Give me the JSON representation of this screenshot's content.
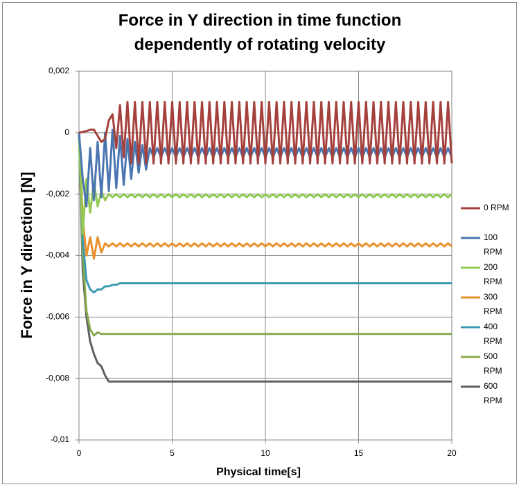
{
  "chart_data": {
    "type": "line",
    "title": "Force in Y direction in time function dependently of rotating velocity",
    "x_label": "Physical time[s]",
    "y_label": "Force in Y direction [N]",
    "xlim": [
      0,
      20
    ],
    "xticks": [
      0,
      5,
      10,
      15,
      20
    ],
    "ylim": [
      -0.01,
      0.002
    ],
    "yticks": [
      {
        "value": 0.002,
        "label": "0,002"
      },
      0,
      {
        "value": -0.002,
        "label": "-0,002"
      },
      {
        "value": -0.004,
        "label": "-0,004"
      },
      {
        "value": -0.006,
        "label": "-0,006"
      },
      {
        "value": -0.008,
        "label": "-0,008"
      },
      {
        "value": -0.01,
        "label": "-0,01"
      }
    ],
    "grid": true,
    "legend": "right",
    "x": [
      0,
      0.2,
      0.4,
      0.6,
      0.8,
      1,
      1.2,
      1.4,
      1.6,
      1.8,
      2,
      2.2,
      2.4,
      2.6,
      2.8,
      3,
      3.2,
      3.4,
      3.6,
      3.8,
      4,
      4.2,
      4.4,
      4.6,
      4.8,
      5,
      5.2,
      5.4,
      5.6,
      5.8,
      6,
      6.2,
      6.4,
      6.6,
      6.8,
      7,
      7.2,
      7.4,
      7.6,
      7.8,
      8,
      8.2,
      8.4,
      8.6,
      8.8,
      9,
      9.2,
      9.4,
      9.6,
      9.8,
      10,
      10.2,
      10.4,
      10.6,
      10.8,
      11,
      11.2,
      11.4,
      11.6,
      11.8,
      12,
      12.2,
      12.4,
      12.6,
      12.8,
      13,
      13.2,
      13.4,
      13.6,
      13.8,
      14,
      14.2,
      14.4,
      14.6,
      14.8,
      15,
      15.2,
      15.4,
      15.6,
      15.8,
      16,
      16.2,
      16.4,
      16.6,
      16.8,
      17,
      17.2,
      17.4,
      17.6,
      17.8,
      18,
      18.2,
      18.4,
      18.6,
      18.8,
      19,
      19.2,
      19.4,
      19.6,
      19.8,
      20
    ],
    "series": [
      {
        "name": "0 RPM",
        "color": "#a5413d",
        "values": [
          0,
          3e-05,
          5e-05,
          0.0001,
          0.0001,
          -0.0001,
          -0.0003,
          -0.0002,
          0.0004,
          0.0006,
          -0.0005,
          0.0009,
          -0.0008,
          0.001,
          -0.001,
          0.001,
          -0.001,
          0.001,
          -0.001,
          0.001,
          -0.001,
          0.001,
          -0.001,
          0.001,
          -0.001,
          0.001,
          -0.001,
          0.001,
          -0.001,
          0.001,
          -0.001,
          0.001,
          -0.001,
          0.001,
          -0.001,
          0.001,
          -0.001,
          0.001,
          -0.001,
          0.001,
          -0.001,
          0.001,
          -0.001,
          0.001,
          -0.001,
          0.001,
          -0.001,
          0.001,
          -0.001,
          0.001,
          -0.001,
          0.001,
          -0.001,
          0.001,
          -0.001,
          0.001,
          -0.001,
          0.001,
          -0.001,
          0.001,
          -0.001,
          0.001,
          -0.001,
          0.001,
          -0.001,
          0.001,
          -0.001,
          0.001,
          -0.001,
          0.001,
          -0.001,
          0.001,
          -0.001,
          0.001,
          -0.001,
          0.001,
          -0.001,
          0.001,
          -0.001,
          0.001,
          -0.001,
          0.001,
          -0.001,
          0.001,
          -0.001,
          0.001,
          -0.001,
          0.001,
          -0.001,
          0.001,
          -0.001,
          0.001,
          -0.001,
          0.001,
          -0.001,
          0.001,
          -0.001,
          0.001,
          -0.001,
          0.001,
          -0.001
        ]
      },
      {
        "name": "100 RPM",
        "color": "#4a75b0",
        "values": [
          0,
          -0.0015,
          -0.0024,
          -0.0005,
          -0.0022,
          -0.0003,
          -0.0021,
          0,
          -0.0019,
          0.0001,
          -0.0018,
          -0.0001,
          -0.0017,
          -0.0002,
          -0.0015,
          -0.0003,
          -0.0013,
          -0.0004,
          -0.0012,
          -0.0005,
          -0.0008,
          -0.0005,
          -0.0008,
          -0.0005,
          -0.0008,
          -0.0005,
          -0.0008,
          -0.0005,
          -0.0008,
          -0.0005,
          -0.0008,
          -0.0005,
          -0.0008,
          -0.0005,
          -0.0008,
          -0.0005,
          -0.0008,
          -0.0005,
          -0.0008,
          -0.0005,
          -0.0008,
          -0.0005,
          -0.0008,
          -0.0005,
          -0.0008,
          -0.0005,
          -0.0008,
          -0.0005,
          -0.0008,
          -0.0005,
          -0.0008,
          -0.0005,
          -0.0008,
          -0.0005,
          -0.0008,
          -0.0005,
          -0.0008,
          -0.0005,
          -0.0008,
          -0.0005,
          -0.0008,
          -0.0005,
          -0.0008,
          -0.0005,
          -0.0008,
          -0.0005,
          -0.0008,
          -0.0005,
          -0.0008,
          -0.0005,
          -0.0008,
          -0.0005,
          -0.0008,
          -0.0005,
          -0.0008,
          -0.0005,
          -0.0008,
          -0.0005,
          -0.0008,
          -0.0005,
          -0.0008,
          -0.0005,
          -0.0008,
          -0.0005,
          -0.0008,
          -0.0005,
          -0.0008,
          -0.0005,
          -0.0008,
          -0.0005,
          -0.0008,
          -0.0005,
          -0.0008,
          -0.0005,
          -0.0008,
          -0.0005,
          -0.0008,
          -0.0005,
          -0.0008,
          -0.0005,
          -0.0008
        ]
      },
      {
        "name": "200 RPM",
        "color": "#93c953",
        "values": [
          0,
          -0.0033,
          -0.0015,
          -0.0026,
          -0.0016,
          -0.0024,
          -0.0019,
          -0.0022,
          -0.002,
          -0.0021,
          -0.002,
          -0.0021,
          -0.002,
          -0.0021,
          -0.002,
          -0.0021,
          -0.002,
          -0.0021,
          -0.002,
          -0.0021,
          -0.002,
          -0.0021,
          -0.002,
          -0.0021,
          -0.002,
          -0.0021,
          -0.002,
          -0.0021,
          -0.002,
          -0.0021,
          -0.002,
          -0.0021,
          -0.002,
          -0.0021,
          -0.002,
          -0.0021,
          -0.002,
          -0.0021,
          -0.002,
          -0.0021,
          -0.002,
          -0.0021,
          -0.002,
          -0.0021,
          -0.002,
          -0.0021,
          -0.002,
          -0.0021,
          -0.002,
          -0.0021,
          -0.002,
          -0.0021,
          -0.002,
          -0.0021,
          -0.002,
          -0.0021,
          -0.002,
          -0.0021,
          -0.002,
          -0.0021,
          -0.002,
          -0.0021,
          -0.002,
          -0.0021,
          -0.002,
          -0.0021,
          -0.002,
          -0.0021,
          -0.002,
          -0.0021,
          -0.002,
          -0.0021,
          -0.002,
          -0.0021,
          -0.002,
          -0.0021,
          -0.002,
          -0.0021,
          -0.002,
          -0.0021,
          -0.002,
          -0.0021,
          -0.002,
          -0.0021,
          -0.002,
          -0.0021,
          -0.002,
          -0.0021,
          -0.002,
          -0.0021,
          -0.002,
          -0.0021,
          -0.002,
          -0.0021,
          -0.002,
          -0.0021,
          -0.002,
          -0.0021,
          -0.002,
          -0.0021,
          -0.002
        ]
      },
      {
        "name": "300 RPM",
        "color": "#e8912f",
        "values": [
          0,
          -0.0028,
          -0.004,
          -0.0034,
          -0.0041,
          -0.0034,
          -0.0039,
          -0.0036,
          -0.0037,
          -0.0036,
          -0.0037,
          -0.0036,
          -0.0037,
          -0.0036,
          -0.0037,
          -0.0036,
          -0.0037,
          -0.0036,
          -0.0037,
          -0.0036,
          -0.0037,
          -0.0036,
          -0.0037,
          -0.0036,
          -0.0037,
          -0.0036,
          -0.0037,
          -0.0036,
          -0.0037,
          -0.0036,
          -0.0037,
          -0.0036,
          -0.0037,
          -0.0036,
          -0.0037,
          -0.0036,
          -0.0037,
          -0.0036,
          -0.0037,
          -0.0036,
          -0.0037,
          -0.0036,
          -0.0037,
          -0.0036,
          -0.0037,
          -0.0036,
          -0.0037,
          -0.0036,
          -0.0037,
          -0.0036,
          -0.0037,
          -0.0036,
          -0.0037,
          -0.0036,
          -0.0037,
          -0.0036,
          -0.0037,
          -0.0036,
          -0.0037,
          -0.0036,
          -0.0037,
          -0.0036,
          -0.0037,
          -0.0036,
          -0.0037,
          -0.0036,
          -0.0037,
          -0.0036,
          -0.0037,
          -0.0036,
          -0.0037,
          -0.0036,
          -0.0037,
          -0.0036,
          -0.0037,
          -0.0036,
          -0.0037,
          -0.0036,
          -0.0037,
          -0.0036,
          -0.0037,
          -0.0036,
          -0.0037,
          -0.0036,
          -0.0037,
          -0.0036,
          -0.0037,
          -0.0036,
          -0.0037,
          -0.0036,
          -0.0037,
          -0.0036,
          -0.0037,
          -0.0036,
          -0.0037,
          -0.0036,
          -0.0037,
          -0.0036,
          -0.0037,
          -0.0036,
          -0.0037
        ]
      },
      {
        "name": "400 RPM",
        "color": "#3b9ab1",
        "values": [
          0,
          -0.0035,
          -0.0048,
          -0.0051,
          -0.0052,
          -0.0051,
          -0.0051,
          -0.005,
          -0.005,
          -0.00495,
          -0.00495,
          -0.0049,
          -0.0049,
          -0.0049,
          -0.0049,
          -0.0049,
          -0.0049,
          -0.0049,
          -0.0049,
          -0.0049,
          -0.0049,
          -0.0049,
          -0.0049,
          -0.0049,
          -0.0049,
          -0.0049,
          -0.0049,
          -0.0049,
          -0.0049,
          -0.0049,
          -0.0049,
          -0.0049,
          -0.0049,
          -0.0049,
          -0.0049,
          -0.0049,
          -0.0049,
          -0.0049,
          -0.0049,
          -0.0049,
          -0.0049,
          -0.0049,
          -0.0049,
          -0.0049,
          -0.0049,
          -0.0049,
          -0.0049,
          -0.0049,
          -0.0049,
          -0.0049,
          -0.0049,
          -0.0049,
          -0.0049,
          -0.0049,
          -0.0049,
          -0.0049,
          -0.0049,
          -0.0049,
          -0.0049,
          -0.0049,
          -0.0049,
          -0.0049,
          -0.0049,
          -0.0049,
          -0.0049,
          -0.0049,
          -0.0049,
          -0.0049,
          -0.0049,
          -0.0049,
          -0.0049,
          -0.0049,
          -0.0049,
          -0.0049,
          -0.0049,
          -0.0049,
          -0.0049,
          -0.0049,
          -0.0049,
          -0.0049,
          -0.0049,
          -0.0049,
          -0.0049,
          -0.0049,
          -0.0049,
          -0.0049,
          -0.0049,
          -0.0049,
          -0.0049,
          -0.0049,
          -0.0049,
          -0.0049,
          -0.0049,
          -0.0049,
          -0.0049,
          -0.0049,
          -0.0049,
          -0.0049,
          -0.0049,
          -0.0049,
          -0.0049
        ]
      },
      {
        "name": "500 RPM",
        "color": "#87aa4c",
        "values": [
          0,
          -0.004,
          -0.0058,
          -0.0064,
          -0.0066,
          -0.0065,
          -0.00655,
          -0.00655,
          -0.00655,
          -0.00655,
          -0.00655,
          -0.00655,
          -0.00655,
          -0.00655,
          -0.00655,
          -0.00655,
          -0.00655,
          -0.00655,
          -0.00655,
          -0.00655,
          -0.00655,
          -0.00655,
          -0.00655,
          -0.00655,
          -0.00655,
          -0.00655,
          -0.00655,
          -0.00655,
          -0.00655,
          -0.00655,
          -0.00655,
          -0.00655,
          -0.00655,
          -0.00655,
          -0.00655,
          -0.00655,
          -0.00655,
          -0.00655,
          -0.00655,
          -0.00655,
          -0.00655,
          -0.00655,
          -0.00655,
          -0.00655,
          -0.00655,
          -0.00655,
          -0.00655,
          -0.00655,
          -0.00655,
          -0.00655,
          -0.00655,
          -0.00655,
          -0.00655,
          -0.00655,
          -0.00655,
          -0.00655,
          -0.00655,
          -0.00655,
          -0.00655,
          -0.00655,
          -0.00655,
          -0.00655,
          -0.00655,
          -0.00655,
          -0.00655,
          -0.00655,
          -0.00655,
          -0.00655,
          -0.00655,
          -0.00655,
          -0.00655,
          -0.00655,
          -0.00655,
          -0.00655,
          -0.00655,
          -0.00655,
          -0.00655,
          -0.00655,
          -0.00655,
          -0.00655,
          -0.00655,
          -0.00655,
          -0.00655,
          -0.00655,
          -0.00655,
          -0.00655,
          -0.00655,
          -0.00655,
          -0.00655,
          -0.00655,
          -0.00655,
          -0.00655,
          -0.00655,
          -0.00655,
          -0.00655,
          -0.00655,
          -0.00655,
          -0.00655,
          -0.00655,
          -0.00655,
          -0.00655
        ]
      },
      {
        "name": "600 RPM",
        "color": "#5f5f5f",
        "values": [
          0,
          -0.0045,
          -0.006,
          -0.0068,
          -0.0072,
          -0.0075,
          -0.0076,
          -0.0079,
          -0.0081,
          -0.0081,
          -0.0081,
          -0.0081,
          -0.0081,
          -0.0081,
          -0.0081,
          -0.0081,
          -0.0081,
          -0.0081,
          -0.0081,
          -0.0081,
          -0.0081,
          -0.0081,
          -0.0081,
          -0.0081,
          -0.0081,
          -0.0081,
          -0.0081,
          -0.0081,
          -0.0081,
          -0.0081,
          -0.0081,
          -0.0081,
          -0.0081,
          -0.0081,
          -0.0081,
          -0.0081,
          -0.0081,
          -0.0081,
          -0.0081,
          -0.0081,
          -0.0081,
          -0.0081,
          -0.0081,
          -0.0081,
          -0.0081,
          -0.0081,
          -0.0081,
          -0.0081,
          -0.0081,
          -0.0081,
          -0.0081,
          -0.0081,
          -0.0081,
          -0.0081,
          -0.0081,
          -0.0081,
          -0.0081,
          -0.0081,
          -0.0081,
          -0.0081,
          -0.0081,
          -0.0081,
          -0.0081,
          -0.0081,
          -0.0081,
          -0.0081,
          -0.0081,
          -0.0081,
          -0.0081,
          -0.0081,
          -0.0081,
          -0.0081,
          -0.0081,
          -0.0081,
          -0.0081,
          -0.0081,
          -0.0081,
          -0.0081,
          -0.0081,
          -0.0081,
          -0.0081,
          -0.0081,
          -0.0081,
          -0.0081,
          -0.0081,
          -0.0081,
          -0.0081,
          -0.0081,
          -0.0081,
          -0.0081,
          -0.0081,
          -0.0081,
          -0.0081,
          -0.0081,
          -0.0081,
          -0.0081,
          -0.0081,
          -0.0081,
          -0.0081,
          -0.0081,
          -0.0081
        ]
      }
    ]
  }
}
